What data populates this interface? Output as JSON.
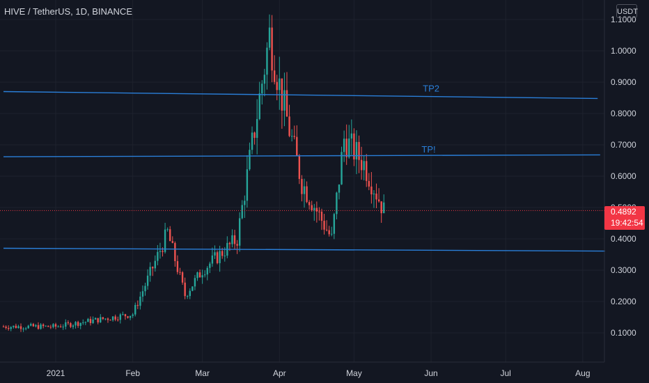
{
  "header": {
    "title": "HIVE / TetherUS, 1D, BINANCE",
    "currency": "USDT"
  },
  "last_price": {
    "value": 0.4892,
    "label": "0.4892",
    "countdown": "19:42:54"
  },
  "colors": {
    "background": "#131722",
    "up": "#26a69a",
    "down": "#ef5350",
    "drawing": "#2a7fd9",
    "price_tag": "#f23645"
  },
  "chart_data": {
    "type": "candlestick",
    "y_axis": {
      "min": 0.0,
      "max": 1.1,
      "ticks": [
        "0.1000",
        "0.2000",
        "0.3000",
        "0.4000",
        "0.5000",
        "0.6000",
        "0.7000",
        "0.8000",
        "0.9000",
        "1.0000",
        "1.1000"
      ]
    },
    "x_axis": {
      "ticks": [
        {
          "label": "2021",
          "date": "2021-01-01"
        },
        {
          "label": "Feb",
          "date": "2021-02-01"
        },
        {
          "label": "Mar",
          "date": "2021-03-01"
        },
        {
          "label": "Apr",
          "date": "2021-04-01"
        },
        {
          "label": "May",
          "date": "2021-05-01"
        },
        {
          "label": "Jun",
          "date": "2021-06-01"
        },
        {
          "label": "Jul",
          "date": "2021-07-01"
        },
        {
          "label": "Aug",
          "date": "2021-08-01"
        }
      ]
    },
    "drawings": [
      {
        "name": "resistance-line-upper",
        "label": "",
        "start": {
          "date": "2020-12-11",
          "price": 0.87
        },
        "end": {
          "date": "2021-08-07",
          "price": 0.848
        }
      },
      {
        "name": "resistance-line-tp2",
        "label": "TP2",
        "label_at": {
          "date": "2021-06-01",
          "price": 0.87
        }
      },
      {
        "name": "resistance-line-middle",
        "label": "TP!",
        "start": {
          "date": "2020-12-11",
          "price": 0.662
        },
        "end": {
          "date": "2021-08-08",
          "price": 0.668
        },
        "label_at": {
          "date": "2021-05-31",
          "price": 0.676
        }
      },
      {
        "name": "support-line",
        "label": "",
        "start": {
          "date": "2020-12-11",
          "price": 0.37
        },
        "end": {
          "date": "2021-08-10",
          "price": 0.361
        }
      }
    ],
    "key_points": [
      {
        "date": "2021-01-01",
        "price": 0.12
      },
      {
        "date": "2021-02-01",
        "price": 0.16
      },
      {
        "date": "2021-02-15",
        "price": 0.42
      },
      {
        "date": "2021-02-22",
        "price": 0.22
      },
      {
        "date": "2021-03-01",
        "price": 0.3
      },
      {
        "date": "2021-03-15",
        "price": 0.4
      },
      {
        "date": "2021-03-28",
        "price": 1.05
      },
      {
        "date": "2021-04-02",
        "price": 0.85
      },
      {
        "date": "2021-04-10",
        "price": 0.58
      },
      {
        "date": "2021-04-22",
        "price": 0.4
      },
      {
        "date": "2021-04-27",
        "price": 0.72
      },
      {
        "date": "2021-05-05",
        "price": 0.64
      },
      {
        "date": "2021-05-13",
        "price": 0.49
      }
    ]
  }
}
